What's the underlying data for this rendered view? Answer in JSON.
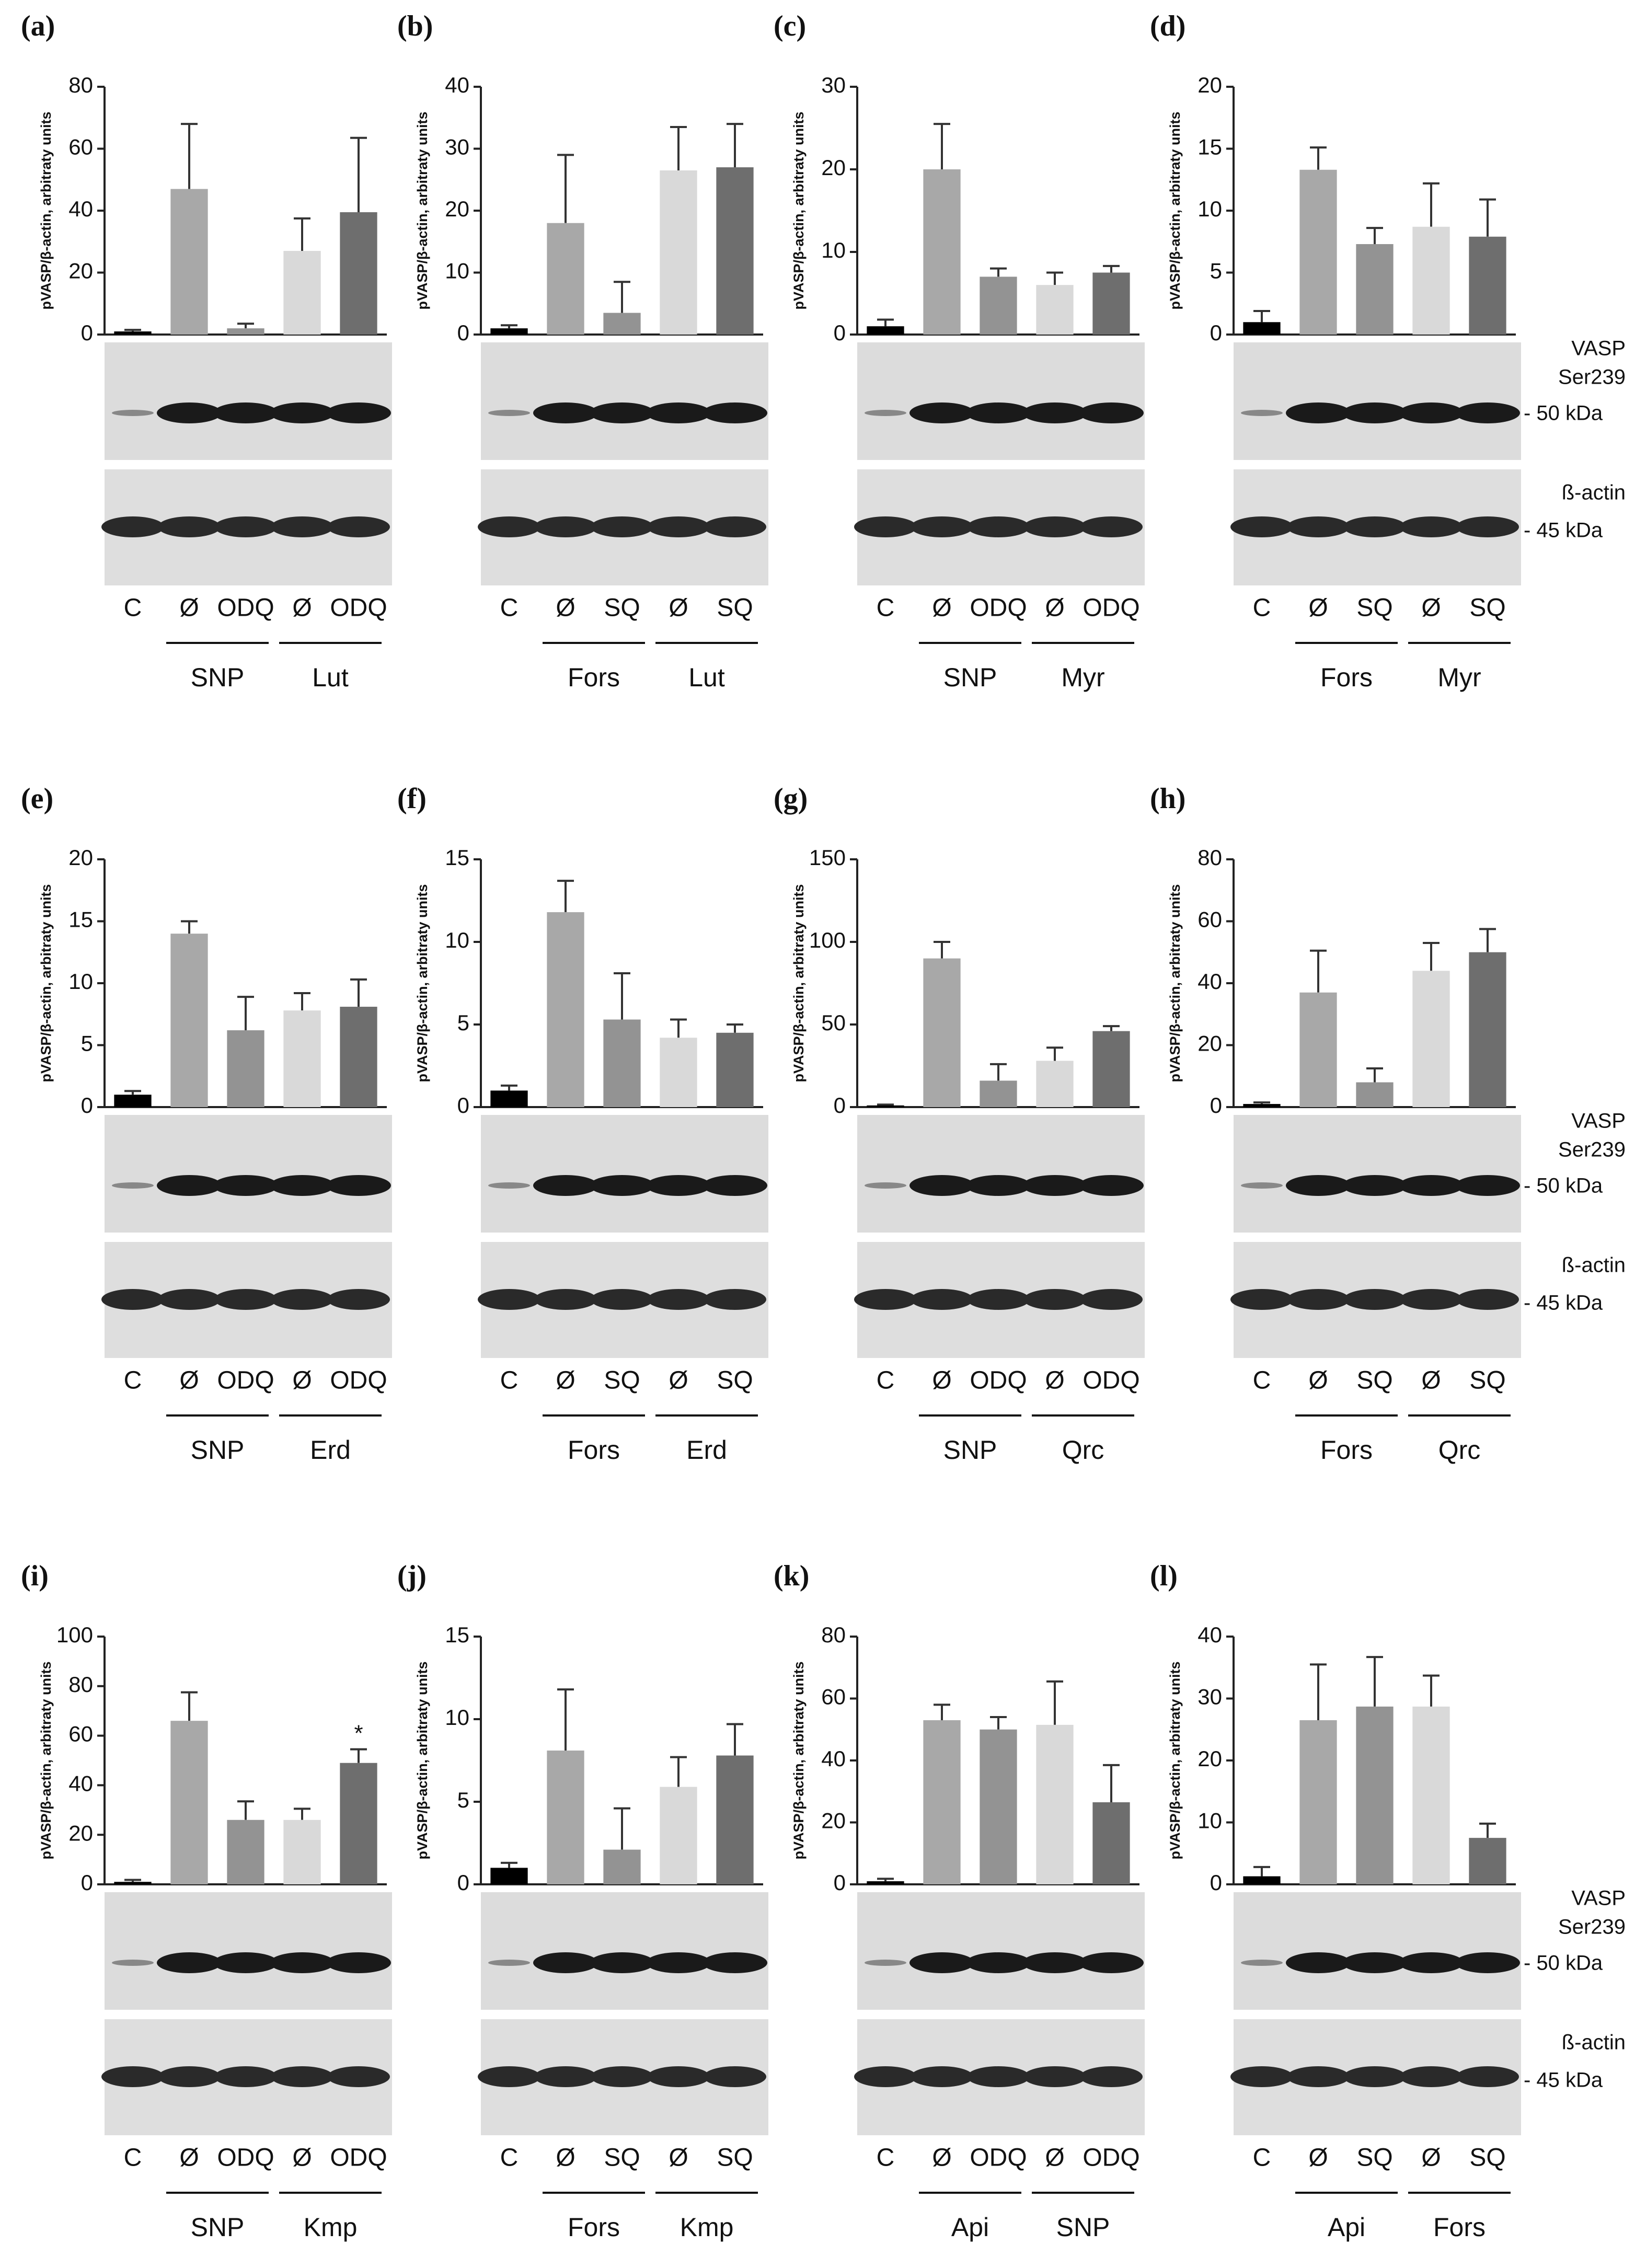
{
  "chart_data": [
    {
      "type": "bar",
      "title": "(a)",
      "ylabel": "pVASP/β-actin, arbitraty units",
      "categories": [
        "C",
        "Ø",
        "ODQ",
        "Ø",
        "ODQ"
      ],
      "groups": [
        "SNP",
        "Lut"
      ],
      "values": [
        1,
        47,
        2,
        27,
        39.5
      ],
      "errors": [
        0.5,
        21,
        1.5,
        10.5,
        24
      ],
      "colors": [
        "#000000",
        "#a8a8a8",
        "#939393",
        "#d9d9d9",
        "#6e6e6e"
      ],
      "ylim": [
        0,
        80
      ],
      "yticks": [
        0,
        20,
        40,
        60,
        80
      ]
    },
    {
      "type": "bar",
      "title": "(b)",
      "ylabel": "pVASP/β-actin, arbitraty units",
      "categories": [
        "C",
        "Ø",
        "SQ",
        "Ø",
        "SQ"
      ],
      "groups": [
        "Fors",
        "Lut"
      ],
      "values": [
        1,
        18,
        3.5,
        26.5,
        27
      ],
      "errors": [
        0.5,
        11,
        5,
        7,
        7
      ],
      "colors": [
        "#000000",
        "#a8a8a8",
        "#939393",
        "#d9d9d9",
        "#6e6e6e"
      ],
      "ylim": [
        0,
        40
      ],
      "yticks": [
        0,
        10,
        20,
        30,
        40
      ]
    },
    {
      "type": "bar",
      "title": "(c)",
      "ylabel": "pVASP/β-actin, arbitraty units",
      "categories": [
        "C",
        "Ø",
        "ODQ",
        "Ø",
        "ODQ"
      ],
      "groups": [
        "SNP",
        "Myr"
      ],
      "values": [
        1,
        20,
        7,
        6,
        7.5
      ],
      "errors": [
        0.8,
        5.5,
        1,
        1.5,
        0.8
      ],
      "colors": [
        "#000000",
        "#a8a8a8",
        "#939393",
        "#d9d9d9",
        "#6e6e6e"
      ],
      "ylim": [
        0,
        30
      ],
      "yticks": [
        0,
        10,
        20,
        30
      ]
    },
    {
      "type": "bar",
      "title": "(d)",
      "ylabel": "pVASP/β-actin, arbitraty units",
      "categories": [
        "C",
        "Ø",
        "SQ",
        "Ø",
        "SQ"
      ],
      "groups": [
        "Fors",
        "Myr"
      ],
      "values": [
        1,
        13.3,
        7.3,
        8.7,
        7.9
      ],
      "errors": [
        0.9,
        1.8,
        1.3,
        3.5,
        3
      ],
      "colors": [
        "#000000",
        "#a8a8a8",
        "#939393",
        "#d9d9d9",
        "#6e6e6e"
      ],
      "ylim": [
        0,
        20
      ],
      "yticks": [
        0,
        5,
        10,
        15,
        20
      ],
      "side_labels": [
        "VASP",
        "Ser239",
        "- 50 kDa",
        "ß-actin",
        "- 45 kDa"
      ]
    },
    {
      "type": "bar",
      "title": "(e)",
      "ylabel": "pVASP/β-actin, arbitraty units",
      "categories": [
        "C",
        "Ø",
        "ODQ",
        "Ø",
        "ODQ"
      ],
      "groups": [
        "SNP",
        "Erd"
      ],
      "values": [
        1,
        14,
        6.2,
        7.8,
        8.1
      ],
      "errors": [
        0.3,
        1,
        2.7,
        1.4,
        2.2
      ],
      "colors": [
        "#000000",
        "#a8a8a8",
        "#939393",
        "#d9d9d9",
        "#6e6e6e"
      ],
      "ylim": [
        0,
        20
      ],
      "yticks": [
        0,
        5,
        10,
        15,
        20
      ]
    },
    {
      "type": "bar",
      "title": "(f)",
      "ylabel": "pVASP/β-actin, arbitraty units",
      "categories": [
        "C",
        "Ø",
        "SQ",
        "Ø",
        "SQ"
      ],
      "groups": [
        "Fors",
        "Erd"
      ],
      "values": [
        1,
        11.8,
        5.3,
        4.2,
        4.5
      ],
      "errors": [
        0.3,
        1.9,
        2.8,
        1.1,
        0.5
      ],
      "colors": [
        "#000000",
        "#a8a8a8",
        "#939393",
        "#d9d9d9",
        "#6e6e6e"
      ],
      "ylim": [
        0,
        15
      ],
      "yticks": [
        0,
        5,
        10,
        15
      ]
    },
    {
      "type": "bar",
      "title": "(g)",
      "ylabel": "pVASP/β-actin, arbitraty units",
      "categories": [
        "C",
        "Ø",
        "ODQ",
        "Ø",
        "ODQ"
      ],
      "groups": [
        "SNP",
        "Qrc"
      ],
      "values": [
        1,
        90,
        16,
        28,
        46
      ],
      "errors": [
        0.5,
        10,
        10,
        8,
        3
      ],
      "colors": [
        "#000000",
        "#a8a8a8",
        "#939393",
        "#d9d9d9",
        "#6e6e6e"
      ],
      "ylim": [
        0,
        150
      ],
      "yticks": [
        0,
        50,
        100,
        150
      ]
    },
    {
      "type": "bar",
      "title": "(h)",
      "ylabel": "pVASP/β-actin, arbitraty units",
      "categories": [
        "C",
        "Ø",
        "SQ",
        "Ø",
        "SQ"
      ],
      "groups": [
        "Fors",
        "Qrc"
      ],
      "values": [
        1,
        37,
        8,
        44,
        50
      ],
      "errors": [
        0.5,
        13.5,
        4.5,
        9,
        7.5
      ],
      "colors": [
        "#000000",
        "#a8a8a8",
        "#939393",
        "#d9d9d9",
        "#6e6e6e"
      ],
      "ylim": [
        0,
        80
      ],
      "yticks": [
        0,
        20,
        40,
        60,
        80
      ],
      "side_labels": [
        "VASP",
        "Ser239",
        "- 50 kDa",
        "ß-actin",
        "- 45 kDa"
      ]
    },
    {
      "type": "bar",
      "title": "(i)",
      "ylabel": "pVASP/β-actin, arbitraty units",
      "categories": [
        "C",
        "Ø",
        "ODQ",
        "Ø",
        "ODQ"
      ],
      "groups": [
        "SNP",
        "Kmp"
      ],
      "values": [
        1,
        66,
        26,
        26,
        49
      ],
      "errors": [
        0.8,
        11.5,
        7.5,
        4.5,
        5.5
      ],
      "colors": [
        "#000000",
        "#a8a8a8",
        "#939393",
        "#d9d9d9",
        "#6e6e6e"
      ],
      "ylim": [
        0,
        100
      ],
      "yticks": [
        0,
        20,
        40,
        60,
        80,
        100
      ],
      "annotation": "*"
    },
    {
      "type": "bar",
      "title": "(j)",
      "ylabel": "pVASP/β-actin, arbitraty units",
      "categories": [
        "C",
        "Ø",
        "SQ",
        "Ø",
        "SQ"
      ],
      "groups": [
        "Fors",
        "Kmp"
      ],
      "values": [
        1,
        8.1,
        2.1,
        5.9,
        7.8
      ],
      "errors": [
        0.3,
        3.7,
        2.5,
        1.8,
        1.9
      ],
      "colors": [
        "#000000",
        "#a8a8a8",
        "#939393",
        "#d9d9d9",
        "#6e6e6e"
      ],
      "ylim": [
        0,
        15
      ],
      "yticks": [
        0,
        5,
        10,
        15
      ]
    },
    {
      "type": "bar",
      "title": "(k)",
      "ylabel": "pVASP/β-actin, arbitraty units",
      "categories": [
        "C",
        "Ø",
        "ODQ",
        "Ø",
        "ODQ"
      ],
      "groups": [
        "Api",
        "SNP"
      ],
      "values": [
        1,
        53,
        50,
        51.5,
        26.5
      ],
      "errors": [
        0.8,
        5,
        4,
        14,
        12
      ],
      "colors": [
        "#000000",
        "#a8a8a8",
        "#939393",
        "#d9d9d9",
        "#6e6e6e"
      ],
      "ylim": [
        0,
        80
      ],
      "yticks": [
        0,
        20,
        40,
        60,
        80
      ]
    },
    {
      "type": "bar",
      "title": "(l)",
      "ylabel": "pVASP/β-actin, arbitraty units",
      "categories": [
        "C",
        "Ø",
        "SQ",
        "Ø",
        "SQ"
      ],
      "groups": [
        "Api",
        "Fors"
      ],
      "values": [
        1.3,
        26.5,
        28.7,
        28.7,
        7.5
      ],
      "errors": [
        1.5,
        9,
        8,
        5,
        2.3
      ],
      "colors": [
        "#000000",
        "#a8a8a8",
        "#939393",
        "#d9d9d9",
        "#6e6e6e"
      ],
      "ylim": [
        0,
        40
      ],
      "yticks": [
        0,
        10,
        20,
        30,
        40
      ],
      "side_labels": [
        "VASP",
        "Ser239",
        "- 50 kDa",
        "ß-actin",
        "- 45 kDa"
      ]
    }
  ]
}
